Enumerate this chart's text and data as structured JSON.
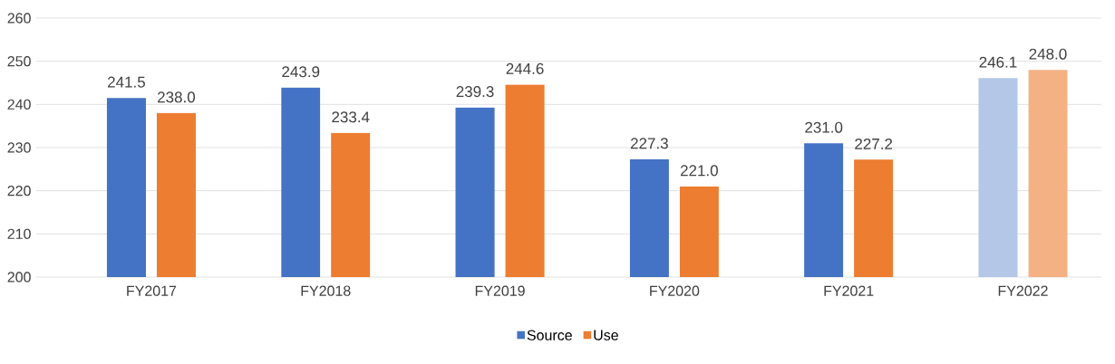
{
  "chart_data": {
    "type": "bar",
    "categories": [
      "FY2017",
      "FY2018",
      "FY2019",
      "FY2020",
      "FY2021",
      "FY2022"
    ],
    "series": [
      {
        "name": "Source",
        "color": "#4472c4",
        "colors": [
          "#4472c4",
          "#4472c4",
          "#4472c4",
          "#4472c4",
          "#4472c4",
          "#b4c7e7"
        ],
        "values": [
          241.5,
          243.9,
          239.3,
          227.3,
          231.0,
          246.1
        ],
        "value_labels": [
          "241.5",
          "243.9",
          "239.3",
          "227.3",
          "231.0",
          "246.1"
        ]
      },
      {
        "name": "Use",
        "color": "#ed7d31",
        "colors": [
          "#ed7d31",
          "#ed7d31",
          "#ed7d31",
          "#ed7d31",
          "#ed7d31",
          "#f4b183"
        ],
        "values": [
          238.0,
          233.4,
          244.6,
          221.0,
          227.2,
          248.0
        ],
        "value_labels": [
          "238.0",
          "233.4",
          "244.6",
          "221.0",
          "227.2",
          "248.0"
        ]
      }
    ],
    "ylim": [
      200,
      260
    ],
    "yticks": [
      200,
      210,
      220,
      230,
      240,
      250,
      260
    ],
    "grid": "y",
    "legend": "bottom"
  }
}
